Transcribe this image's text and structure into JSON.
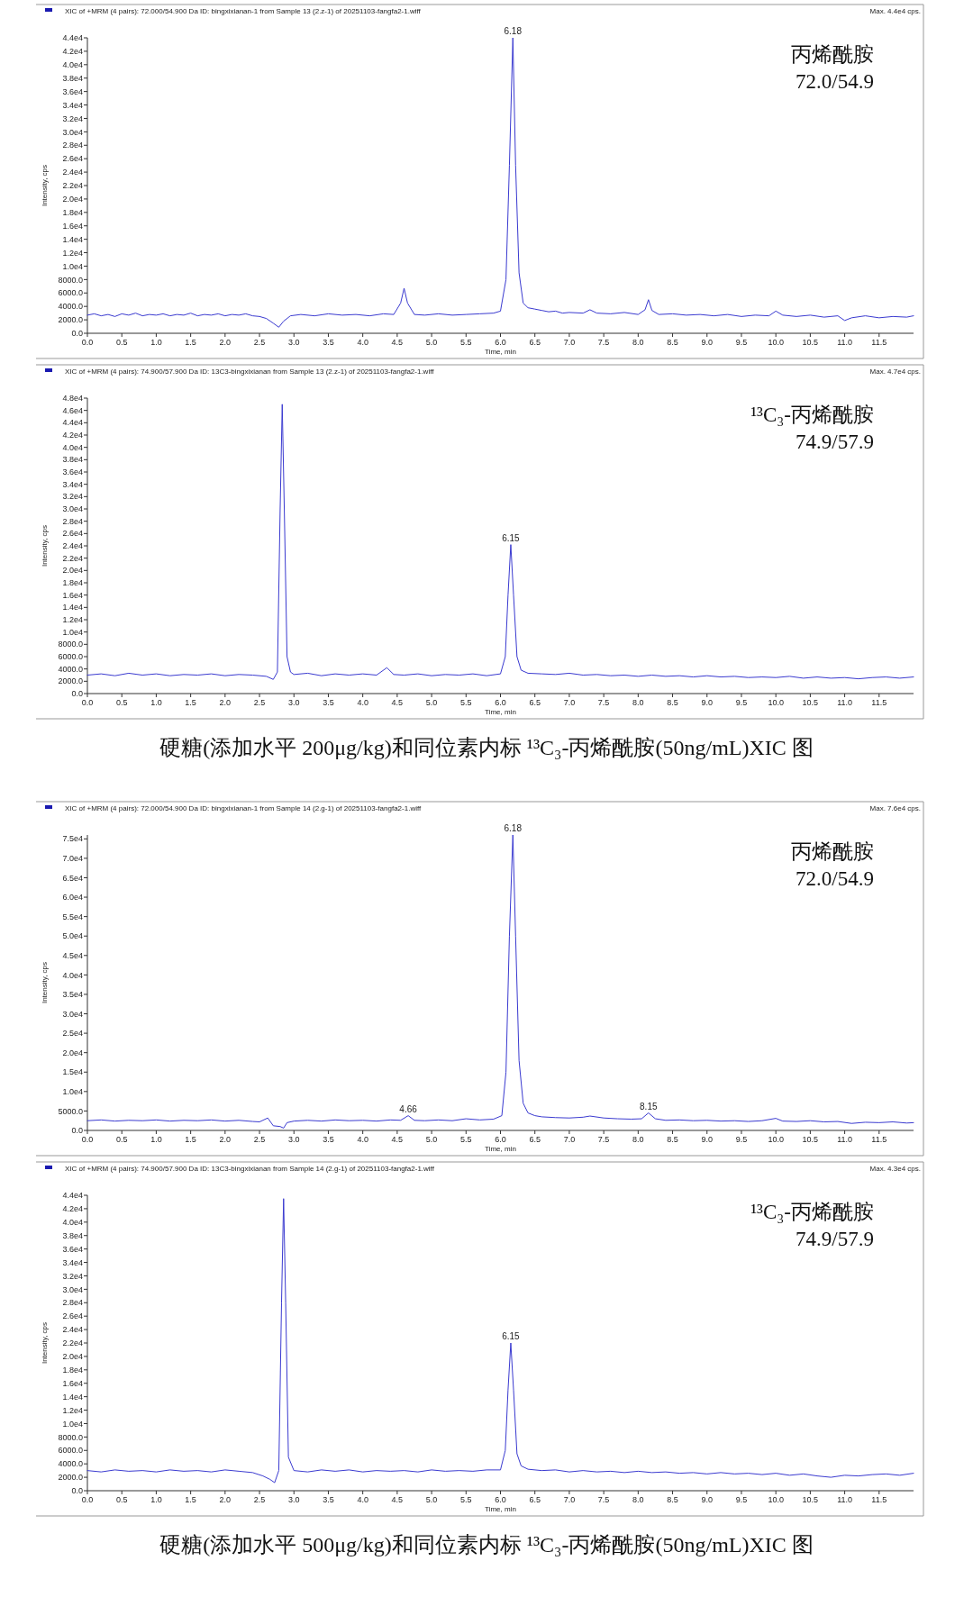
{
  "chart_data": [
    {
      "type": "line",
      "title": "XIC of +MRM (4 pairs): 72.000/54.900 Da ID: bingxixianan-1 from Sample 13 (2.z-1) of 20251103-fangfa2-1.wiff",
      "subtitle": "Max. 4.4e4 cps.",
      "xlabel": "Time, min",
      "ylabel": "Intensity, cps",
      "xlim": [
        0,
        12
      ],
      "ylim": [
        0,
        44000
      ],
      "xticks": [
        {
          "value": 0,
          "label": "0.0"
        },
        {
          "value": 0.5,
          "label": "0.5"
        },
        {
          "value": 1,
          "label": "1.0"
        },
        {
          "value": 1.5,
          "label": "1.5"
        },
        {
          "value": 2,
          "label": "2.0"
        },
        {
          "value": 2.5,
          "label": "2.5"
        },
        {
          "value": 3,
          "label": "3.0"
        },
        {
          "value": 3.5,
          "label": "3.5"
        },
        {
          "value": 4,
          "label": "4.0"
        },
        {
          "value": 4.5,
          "label": "4.5"
        },
        {
          "value": 5,
          "label": "5.0"
        },
        {
          "value": 5.5,
          "label": "5.5"
        },
        {
          "value": 6,
          "label": "6.0"
        },
        {
          "value": 6.5,
          "label": "6.5"
        },
        {
          "value": 7,
          "label": "7.0"
        },
        {
          "value": 7.5,
          "label": "7.5"
        },
        {
          "value": 8,
          "label": "8.0"
        },
        {
          "value": 8.5,
          "label": "8.5"
        },
        {
          "value": 9,
          "label": "9.0"
        },
        {
          "value": 9.5,
          "label": "9.5"
        },
        {
          "value": 10,
          "label": "10.0"
        },
        {
          "value": 10.5,
          "label": "10.5"
        },
        {
          "value": 11,
          "label": "11.0"
        },
        {
          "value": 11.5,
          "label": "11.5"
        }
      ],
      "yticks": [
        {
          "value": 0,
          "label": "0.0"
        },
        {
          "value": 2000,
          "label": "2000.0"
        },
        {
          "value": 4000,
          "label": "4000.0"
        },
        {
          "value": 6000,
          "label": "6000.0"
        },
        {
          "value": 8000,
          "label": "8000.0"
        },
        {
          "value": 10000,
          "label": "1.0e4"
        },
        {
          "value": 12000,
          "label": "1.2e4"
        },
        {
          "value": 14000,
          "label": "1.4e4"
        },
        {
          "value": 16000,
          "label": "1.6e4"
        },
        {
          "value": 18000,
          "label": "1.8e4"
        },
        {
          "value": 20000,
          "label": "2.0e4"
        },
        {
          "value": 22000,
          "label": "2.2e4"
        },
        {
          "value": 24000,
          "label": "2.4e4"
        },
        {
          "value": 26000,
          "label": "2.6e4"
        },
        {
          "value": 28000,
          "label": "2.8e4"
        },
        {
          "value": 30000,
          "label": "3.0e4"
        },
        {
          "value": 32000,
          "label": "3.2e4"
        },
        {
          "value": 34000,
          "label": "3.4e4"
        },
        {
          "value": 36000,
          "label": "3.6e4"
        },
        {
          "value": 38000,
          "label": "3.8e4"
        },
        {
          "value": 40000,
          "label": "4.0e4"
        },
        {
          "value": 42000,
          "label": "4.2e4"
        },
        {
          "value": 44000,
          "label": "4.4e4"
        }
      ],
      "series": [
        {
          "color": "#3a3ad0",
          "x": [
            0,
            0.1,
            0.2,
            0.3,
            0.4,
            0.5,
            0.6,
            0.7,
            0.8,
            0.9,
            1.0,
            1.1,
            1.2,
            1.3,
            1.4,
            1.5,
            1.6,
            1.7,
            1.8,
            1.9,
            2.0,
            2.1,
            2.2,
            2.3,
            2.4,
            2.5,
            2.6,
            2.7,
            2.78,
            2.85,
            2.95,
            3.1,
            3.3,
            3.5,
            3.7,
            3.9,
            4.1,
            4.3,
            4.45,
            4.55,
            4.6,
            4.65,
            4.75,
            4.9,
            5.1,
            5.3,
            5.5,
            5.7,
            5.9,
            6.0,
            6.08,
            6.13,
            6.18,
            6.22,
            6.27,
            6.33,
            6.4,
            6.5,
            6.6,
            6.7,
            6.8,
            6.9,
            7.0,
            7.2,
            7.3,
            7.4,
            7.6,
            7.8,
            8.0,
            8.1,
            8.15,
            8.2,
            8.3,
            8.5,
            8.7,
            8.9,
            9.1,
            9.3,
            9.5,
            9.7,
            9.9,
            10.0,
            10.1,
            10.3,
            10.5,
            10.7,
            10.9,
            11.0,
            11.1,
            11.3,
            11.5,
            11.7,
            11.9,
            12.0
          ],
          "values": [
            2700,
            2900,
            2600,
            2800,
            2500,
            2900,
            2700,
            3000,
            2600,
            2800,
            2700,
            2900,
            2600,
            2800,
            2700,
            3000,
            2600,
            2800,
            2700,
            2900,
            2600,
            2800,
            2700,
            2900,
            2600,
            2500,
            2200,
            1500,
            900,
            1800,
            2600,
            2800,
            2600,
            2900,
            2700,
            2800,
            2600,
            2900,
            2800,
            4500,
            6700,
            4500,
            2800,
            2700,
            2900,
            2700,
            2800,
            2900,
            3000,
            3300,
            8000,
            25000,
            44000,
            25000,
            9000,
            4500,
            3800,
            3600,
            3400,
            3200,
            3300,
            3000,
            3100,
            3000,
            3500,
            3000,
            2900,
            3100,
            2800,
            3500,
            5000,
            3400,
            2800,
            2900,
            2700,
            2800,
            2600,
            2800,
            2500,
            2700,
            2600,
            3300,
            2700,
            2500,
            2700,
            2400,
            2600,
            1900,
            2300,
            2600,
            2300,
            2500,
            2400,
            2600
          ]
        }
      ],
      "annotations": [
        "丙烯酰胺",
        "72.0/54.9",
        {
          "text": "6.18",
          "x": 6.18,
          "y": 44000
        }
      ]
    },
    {
      "type": "line",
      "title": "XIC of +MRM (4 pairs): 74.900/57.900 Da ID: 13C3-bingxixianan from Sample 13 (2.z-1) of 20251103-fangfa2-1.wiff",
      "subtitle": "Max. 4.7e4 cps.",
      "xlabel": "Time, min",
      "ylabel": "Intensity, cps",
      "xlim": [
        0,
        12
      ],
      "ylim": [
        0,
        48000
      ],
      "xticks": [
        {
          "value": 0,
          "label": "0.0"
        },
        {
          "value": 0.5,
          "label": "0.5"
        },
        {
          "value": 1,
          "label": "1.0"
        },
        {
          "value": 1.5,
          "label": "1.5"
        },
        {
          "value": 2,
          "label": "2.0"
        },
        {
          "value": 2.5,
          "label": "2.5"
        },
        {
          "value": 3,
          "label": "3.0"
        },
        {
          "value": 3.5,
          "label": "3.5"
        },
        {
          "value": 4,
          "label": "4.0"
        },
        {
          "value": 4.5,
          "label": "4.5"
        },
        {
          "value": 5,
          "label": "5.0"
        },
        {
          "value": 5.5,
          "label": "5.5"
        },
        {
          "value": 6,
          "label": "6.0"
        },
        {
          "value": 6.5,
          "label": "6.5"
        },
        {
          "value": 7,
          "label": "7.0"
        },
        {
          "value": 7.5,
          "label": "7.5"
        },
        {
          "value": 8,
          "label": "8.0"
        },
        {
          "value": 8.5,
          "label": "8.5"
        },
        {
          "value": 9,
          "label": "9.0"
        },
        {
          "value": 9.5,
          "label": "9.5"
        },
        {
          "value": 10,
          "label": "10.0"
        },
        {
          "value": 10.5,
          "label": "10.5"
        },
        {
          "value": 11,
          "label": "11.0"
        },
        {
          "value": 11.5,
          "label": "11.5"
        }
      ],
      "yticks": [
        {
          "value": 0,
          "label": "0.0"
        },
        {
          "value": 2000,
          "label": "2000.0"
        },
        {
          "value": 4000,
          "label": "4000.0"
        },
        {
          "value": 6000,
          "label": "6000.0"
        },
        {
          "value": 8000,
          "label": "8000.0"
        },
        {
          "value": 10000,
          "label": "1.0e4"
        },
        {
          "value": 12000,
          "label": "1.2e4"
        },
        {
          "value": 14000,
          "label": "1.4e4"
        },
        {
          "value": 16000,
          "label": "1.6e4"
        },
        {
          "value": 18000,
          "label": "1.8e4"
        },
        {
          "value": 20000,
          "label": "2.0e4"
        },
        {
          "value": 22000,
          "label": "2.2e4"
        },
        {
          "value": 24000,
          "label": "2.4e4"
        },
        {
          "value": 26000,
          "label": "2.6e4"
        },
        {
          "value": 28000,
          "label": "2.8e4"
        },
        {
          "value": 30000,
          "label": "3.0e4"
        },
        {
          "value": 32000,
          "label": "3.2e4"
        },
        {
          "value": 34000,
          "label": "3.4e4"
        },
        {
          "value": 36000,
          "label": "3.6e4"
        },
        {
          "value": 38000,
          "label": "3.8e4"
        },
        {
          "value": 40000,
          "label": "4.0e4"
        },
        {
          "value": 42000,
          "label": "4.2e4"
        },
        {
          "value": 44000,
          "label": "4.4e4"
        },
        {
          "value": 46000,
          "label": "4.6e4"
        },
        {
          "value": 48000,
          "label": "4.8e4"
        }
      ],
      "series": [
        {
          "color": "#3a3ad0",
          "x": [
            0,
            0.2,
            0.4,
            0.6,
            0.8,
            1.0,
            1.2,
            1.4,
            1.6,
            1.8,
            2.0,
            2.2,
            2.4,
            2.6,
            2.7,
            2.76,
            2.8,
            2.83,
            2.86,
            2.9,
            2.95,
            3.0,
            3.2,
            3.4,
            3.6,
            3.8,
            4.0,
            4.2,
            4.35,
            4.45,
            4.6,
            4.8,
            5.0,
            5.2,
            5.4,
            5.6,
            5.8,
            6.0,
            6.07,
            6.11,
            6.15,
            6.19,
            6.24,
            6.3,
            6.4,
            6.6,
            6.8,
            7.0,
            7.2,
            7.4,
            7.6,
            7.8,
            8.0,
            8.2,
            8.4,
            8.6,
            8.8,
            9.0,
            9.2,
            9.4,
            9.6,
            9.8,
            10.0,
            10.2,
            10.4,
            10.6,
            10.8,
            11.0,
            11.2,
            11.4,
            11.6,
            11.8,
            12.0
          ],
          "values": [
            3000,
            3200,
            2900,
            3300,
            3000,
            3200,
            2900,
            3100,
            3000,
            3200,
            2900,
            3100,
            3000,
            2800,
            2300,
            3500,
            30000,
            47000,
            30000,
            6000,
            3500,
            3100,
            3300,
            2900,
            3200,
            3000,
            3200,
            3000,
            4200,
            3100,
            3000,
            3200,
            2900,
            3100,
            3000,
            3200,
            2900,
            3200,
            6000,
            16000,
            24200,
            16000,
            6000,
            3800,
            3300,
            3200,
            3100,
            3300,
            3000,
            3100,
            2900,
            3000,
            2800,
            3000,
            2800,
            2900,
            2700,
            2900,
            2700,
            2800,
            2600,
            2700,
            2600,
            2800,
            2500,
            2700,
            2500,
            2600,
            2400,
            2600,
            2700,
            2500,
            2700
          ]
        }
      ],
      "annotations": [
        "¹³C₃-丙烯酰胺",
        "74.9/57.9",
        "硬糖(添加水平 200μg/kg)和同位素内标 ¹³C₃-丙烯酰胺(50ng/mL)XIC 图",
        {
          "text": "6.15",
          "x": 6.15,
          "y": 24200
        }
      ]
    },
    {
      "type": "line",
      "title": "XIC of +MRM (4 pairs): 72.000/54.900 Da ID: bingxixianan-1 from Sample 14 (2.g-1) of 20251103-fangfa2-1.wiff",
      "subtitle": "Max. 7.6e4 cps.",
      "xlabel": "Time, min",
      "ylabel": "Intensity, cps",
      "xlim": [
        0,
        12
      ],
      "ylim": [
        0,
        76000
      ],
      "xticks": [
        {
          "value": 0,
          "label": "0.0"
        },
        {
          "value": 0.5,
          "label": "0.5"
        },
        {
          "value": 1,
          "label": "1.0"
        },
        {
          "value": 1.5,
          "label": "1.5"
        },
        {
          "value": 2,
          "label": "2.0"
        },
        {
          "value": 2.5,
          "label": "2.5"
        },
        {
          "value": 3,
          "label": "3.0"
        },
        {
          "value": 3.5,
          "label": "3.5"
        },
        {
          "value": 4,
          "label": "4.0"
        },
        {
          "value": 4.5,
          "label": "4.5"
        },
        {
          "value": 5,
          "label": "5.0"
        },
        {
          "value": 5.5,
          "label": "5.5"
        },
        {
          "value": 6,
          "label": "6.0"
        },
        {
          "value": 6.5,
          "label": "6.5"
        },
        {
          "value": 7,
          "label": "7.0"
        },
        {
          "value": 7.5,
          "label": "7.5"
        },
        {
          "value": 8,
          "label": "8.0"
        },
        {
          "value": 8.5,
          "label": "8.5"
        },
        {
          "value": 9,
          "label": "9.0"
        },
        {
          "value": 9.5,
          "label": "9.5"
        },
        {
          "value": 10,
          "label": "10.0"
        },
        {
          "value": 10.5,
          "label": "10.5"
        },
        {
          "value": 11,
          "label": "11.0"
        },
        {
          "value": 11.5,
          "label": "11.5"
        }
      ],
      "yticks": [
        {
          "value": 0,
          "label": "0.0"
        },
        {
          "value": 5000,
          "label": "5000.0"
        },
        {
          "value": 10000,
          "label": "1.0e4"
        },
        {
          "value": 15000,
          "label": "1.5e4"
        },
        {
          "value": 20000,
          "label": "2.0e4"
        },
        {
          "value": 25000,
          "label": "2.5e4"
        },
        {
          "value": 30000,
          "label": "3.0e4"
        },
        {
          "value": 35000,
          "label": "3.5e4"
        },
        {
          "value": 40000,
          "label": "4.0e4"
        },
        {
          "value": 45000,
          "label": "4.5e4"
        },
        {
          "value": 50000,
          "label": "5.0e4"
        },
        {
          "value": 55000,
          "label": "5.5e4"
        },
        {
          "value": 60000,
          "label": "6.0e4"
        },
        {
          "value": 65000,
          "label": "6.5e4"
        },
        {
          "value": 70000,
          "label": "7.0e4"
        },
        {
          "value": 75000,
          "label": "7.5e4"
        }
      ],
      "series": [
        {
          "color": "#3a3ad0",
          "x": [
            0,
            0.2,
            0.4,
            0.6,
            0.8,
            1.0,
            1.2,
            1.4,
            1.6,
            1.8,
            2.0,
            2.2,
            2.4,
            2.5,
            2.62,
            2.7,
            2.8,
            2.85,
            2.9,
            3.0,
            3.2,
            3.4,
            3.6,
            3.8,
            4.0,
            4.2,
            4.4,
            4.55,
            4.66,
            4.75,
            4.9,
            5.1,
            5.3,
            5.5,
            5.7,
            5.9,
            6.02,
            6.08,
            6.13,
            6.18,
            6.22,
            6.27,
            6.33,
            6.4,
            6.5,
            6.6,
            6.8,
            7.0,
            7.2,
            7.3,
            7.5,
            7.7,
            7.9,
            8.05,
            8.15,
            8.25,
            8.4,
            8.6,
            8.8,
            9.0,
            9.2,
            9.4,
            9.6,
            9.8,
            10.0,
            10.1,
            10.3,
            10.5,
            10.7,
            10.9,
            11.1,
            11.3,
            11.5,
            11.7,
            11.9,
            12.0
          ],
          "values": [
            2500,
            2700,
            2400,
            2600,
            2500,
            2700,
            2400,
            2600,
            2500,
            2700,
            2400,
            2600,
            2300,
            2200,
            3200,
            1200,
            1000,
            600,
            2000,
            2400,
            2600,
            2400,
            2700,
            2500,
            2600,
            2400,
            2700,
            2600,
            3800,
            2600,
            2500,
            2700,
            2500,
            3000,
            2700,
            2900,
            3800,
            15000,
            50000,
            76000,
            50000,
            18000,
            7000,
            4500,
            3800,
            3500,
            3300,
            3200,
            3400,
            3700,
            3200,
            3000,
            2900,
            3000,
            4500,
            3000,
            2600,
            2700,
            2500,
            2600,
            2400,
            2500,
            2300,
            2500,
            3100,
            2400,
            2300,
            2500,
            2200,
            2300,
            1800,
            2100,
            2000,
            2200,
            1900,
            2000
          ]
        }
      ],
      "annotations": [
        "丙烯酰胺",
        "72.0/54.9",
        {
          "text": "6.18",
          "x": 6.18,
          "y": 76000
        },
        {
          "text": "4.66",
          "x": 4.66,
          "y": 3800
        },
        {
          "text": "8.15",
          "x": 8.15,
          "y": 4500
        }
      ]
    },
    {
      "type": "line",
      "title": "XIC of +MRM (4 pairs): 74.900/57.900 Da ID: 13C3-bingxixianan from Sample 14 (2.g-1) of 20251103-fangfa2-1.wiff",
      "subtitle": "Max. 4.3e4 cps.",
      "xlabel": "Time, min",
      "ylabel": "Intensity, cps",
      "xlim": [
        0,
        12
      ],
      "ylim": [
        0,
        44000
      ],
      "xticks": [
        {
          "value": 0,
          "label": "0.0"
        },
        {
          "value": 0.5,
          "label": "0.5"
        },
        {
          "value": 1,
          "label": "1.0"
        },
        {
          "value": 1.5,
          "label": "1.5"
        },
        {
          "value": 2,
          "label": "2.0"
        },
        {
          "value": 2.5,
          "label": "2.5"
        },
        {
          "value": 3,
          "label": "3.0"
        },
        {
          "value": 3.5,
          "label": "3.5"
        },
        {
          "value": 4,
          "label": "4.0"
        },
        {
          "value": 4.5,
          "label": "4.5"
        },
        {
          "value": 5,
          "label": "5.0"
        },
        {
          "value": 5.5,
          "label": "5.5"
        },
        {
          "value": 6,
          "label": "6.0"
        },
        {
          "value": 6.5,
          "label": "6.5"
        },
        {
          "value": 7,
          "label": "7.0"
        },
        {
          "value": 7.5,
          "label": "7.5"
        },
        {
          "value": 8,
          "label": "8.0"
        },
        {
          "value": 8.5,
          "label": "8.5"
        },
        {
          "value": 9,
          "label": "9.0"
        },
        {
          "value": 9.5,
          "label": "9.5"
        },
        {
          "value": 10,
          "label": "10.0"
        },
        {
          "value": 10.5,
          "label": "10.5"
        },
        {
          "value": 11,
          "label": "11.0"
        },
        {
          "value": 11.5,
          "label": "11.5"
        }
      ],
      "yticks": [
        {
          "value": 0,
          "label": "0.0"
        },
        {
          "value": 2000,
          "label": "2000.0"
        },
        {
          "value": 4000,
          "label": "4000.0"
        },
        {
          "value": 6000,
          "label": "6000.0"
        },
        {
          "value": 8000,
          "label": "8000.0"
        },
        {
          "value": 10000,
          "label": "1.0e4"
        },
        {
          "value": 12000,
          "label": "1.2e4"
        },
        {
          "value": 14000,
          "label": "1.4e4"
        },
        {
          "value": 16000,
          "label": "1.6e4"
        },
        {
          "value": 18000,
          "label": "1.8e4"
        },
        {
          "value": 20000,
          "label": "2.0e4"
        },
        {
          "value": 22000,
          "label": "2.2e4"
        },
        {
          "value": 24000,
          "label": "2.4e4"
        },
        {
          "value": 26000,
          "label": "2.6e4"
        },
        {
          "value": 28000,
          "label": "2.8e4"
        },
        {
          "value": 30000,
          "label": "3.0e4"
        },
        {
          "value": 32000,
          "label": "3.2e4"
        },
        {
          "value": 34000,
          "label": "3.4e4"
        },
        {
          "value": 36000,
          "label": "3.6e4"
        },
        {
          "value": 38000,
          "label": "3.8e4"
        },
        {
          "value": 40000,
          "label": "4.0e4"
        },
        {
          "value": 42000,
          "label": "4.2e4"
        },
        {
          "value": 44000,
          "label": "4.4e4"
        }
      ],
      "series": [
        {
          "color": "#3a3ad0",
          "x": [
            0,
            0.2,
            0.4,
            0.6,
            0.8,
            1.0,
            1.2,
            1.4,
            1.6,
            1.8,
            2.0,
            2.2,
            2.4,
            2.55,
            2.65,
            2.72,
            2.78,
            2.82,
            2.85,
            2.88,
            2.92,
            3.0,
            3.2,
            3.4,
            3.6,
            3.8,
            4.0,
            4.2,
            4.4,
            4.6,
            4.8,
            5.0,
            5.2,
            5.4,
            5.6,
            5.8,
            6.0,
            6.07,
            6.11,
            6.15,
            6.19,
            6.24,
            6.3,
            6.4,
            6.6,
            6.8,
            7.0,
            7.2,
            7.4,
            7.6,
            7.8,
            8.0,
            8.2,
            8.4,
            8.6,
            8.8,
            9.0,
            9.2,
            9.4,
            9.6,
            9.8,
            10.0,
            10.2,
            10.4,
            10.6,
            10.8,
            11.0,
            11.2,
            11.4,
            11.6,
            11.8,
            12.0
          ],
          "values": [
            3000,
            2800,
            3100,
            2900,
            3000,
            2800,
            3100,
            2900,
            3000,
            2800,
            3100,
            2900,
            2700,
            2200,
            1700,
            1200,
            3000,
            28000,
            43500,
            28000,
            5000,
            3000,
            2800,
            3100,
            2900,
            3100,
            2800,
            3000,
            2900,
            3000,
            2800,
            3100,
            2900,
            3000,
            2900,
            3100,
            3100,
            6000,
            15000,
            22000,
            15000,
            5500,
            3700,
            3200,
            3000,
            3100,
            2800,
            3000,
            2800,
            2900,
            2700,
            2900,
            2700,
            2800,
            2600,
            2700,
            2500,
            2700,
            2500,
            2600,
            2400,
            2600,
            2300,
            2500,
            2200,
            2000,
            2300,
            2200,
            2400,
            2500,
            2300,
            2600
          ]
        }
      ],
      "annotations": [
        "¹³C₃-丙烯酰胺",
        "74.9/57.9",
        "硬糖(添加水平 500μg/kg)和同位素内标 ¹³C₃-丙烯酰胺(50ng/mL)XIC 图",
        {
          "text": "6.15",
          "x": 6.15,
          "y": 22000
        }
      ]
    }
  ]
}
